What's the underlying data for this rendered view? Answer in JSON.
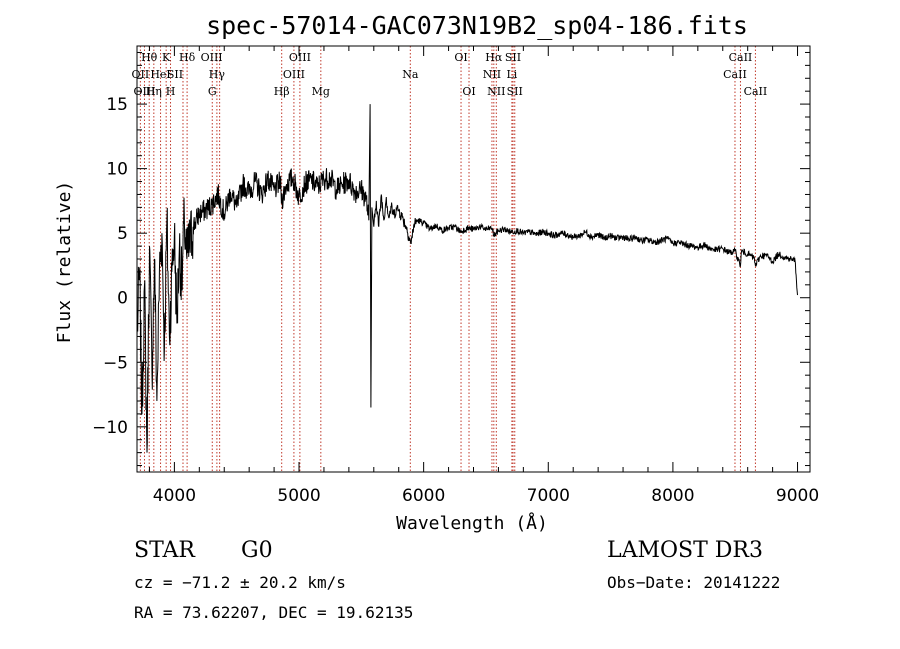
{
  "chart_data": {
    "type": "line",
    "title": "spec-57014-GAC073N19B2_sp04-186.fits",
    "xlabel": "Wavelength (Å)",
    "ylabel": "Flux (relative)",
    "xlim": [
      3700,
      9100
    ],
    "ylim": [
      -13.5,
      19.5
    ],
    "x_ticks": [
      4000,
      5000,
      6000,
      7000,
      8000,
      9000
    ],
    "x_tick_labels": [
      "4000",
      "5000",
      "6000",
      "7000",
      "8000",
      "9000"
    ],
    "y_ticks": [
      -10,
      -5,
      0,
      5,
      10,
      15
    ],
    "y_tick_labels": [
      "−10",
      "−5",
      "0",
      "5",
      "10",
      "15"
    ],
    "x_minor_step": 200,
    "y_minor_step": 1,
    "series": [
      {
        "name": "flux",
        "x": [
          3700,
          3720,
          3740,
          3760,
          3780,
          3800,
          3820,
          3840,
          3860,
          3880,
          3900,
          3920,
          3940,
          3960,
          3980,
          4000,
          4020,
          4040,
          4060,
          4080,
          4100,
          4150,
          4200,
          4250,
          4300,
          4350,
          4400,
          4450,
          4500,
          4550,
          4600,
          4650,
          4700,
          4750,
          4800,
          4850,
          4861,
          4900,
          4950,
          5000,
          5050,
          5100,
          5150,
          5200,
          5250,
          5300,
          5350,
          5400,
          5450,
          5500,
          5540,
          5560,
          5570,
          5577,
          5585,
          5600,
          5620,
          5640,
          5660,
          5680,
          5700,
          5720,
          5740,
          5760,
          5780,
          5800,
          5830,
          5860,
          5890,
          5900,
          5920,
          5950,
          6000,
          6050,
          6100,
          6150,
          6200,
          6250,
          6300,
          6350,
          6400,
          6450,
          6500,
          6550,
          6563,
          6600,
          6650,
          6700,
          6750,
          6800,
          6850,
          6900,
          6950,
          7000,
          7050,
          7100,
          7150,
          7200,
          7250,
          7300,
          7350,
          7400,
          7450,
          7500,
          7550,
          7600,
          7650,
          7700,
          7750,
          7800,
          7850,
          7900,
          7950,
          8000,
          8050,
          8100,
          8150,
          8200,
          8250,
          8300,
          8350,
          8400,
          8450,
          8500,
          8542,
          8550,
          8600,
          8650,
          8662,
          8700,
          8750,
          8800,
          8850,
          8900,
          8950,
          8980,
          9000
        ],
        "y": [
          -3,
          2,
          -9,
          1,
          -12,
          4,
          -6,
          3,
          -8,
          2,
          5,
          -4,
          6,
          -3,
          2,
          5,
          -2,
          4,
          1,
          6,
          3,
          5.5,
          6.5,
          6.8,
          7.2,
          8,
          6.5,
          8.2,
          7,
          8.8,
          8.2,
          9,
          8,
          9.2,
          8.3,
          9,
          7.5,
          8.8,
          9.3,
          7.8,
          8.9,
          9.1,
          8.6,
          9.2,
          9.3,
          8.4,
          8.8,
          9.1,
          8.2,
          8.4,
          7.6,
          6,
          15,
          -8.5,
          7,
          5.5,
          7.5,
          5.5,
          8,
          6,
          7.8,
          6.2,
          7,
          6.4,
          6.9,
          6.8,
          6.2,
          5.5,
          4.5,
          4.2,
          5.6,
          6,
          5.8,
          5.3,
          5.6,
          5.2,
          5.4,
          5.5,
          5.1,
          5.4,
          5.3,
          5.5,
          5.3,
          5.4,
          4.8,
          5.2,
          5.3,
          5.1,
          5.2,
          5,
          5.1,
          4.9,
          5.1,
          5,
          4.8,
          5,
          4.9,
          4.7,
          4.8,
          5.1,
          4.7,
          4.9,
          4.6,
          4.8,
          4.6,
          4.7,
          4.5,
          4.7,
          4.4,
          4.5,
          4.3,
          4.4,
          4.6,
          4.2,
          4.3,
          4.1,
          4,
          3.9,
          4.1,
          3.8,
          3.7,
          3.8,
          3.5,
          3.6,
          2.5,
          3.6,
          3.4,
          3.1,
          2.5,
          3.2,
          3.3,
          2.8,
          3.4,
          3.1,
          3,
          2.9,
          0.2
        ]
      }
    ],
    "lines": [
      {
        "name": "Hθ",
        "x": 3798,
        "row": 0,
        "dx": 0
      },
      {
        "name": "OII",
        "x": 3727,
        "row": 1,
        "dx": 0
      },
      {
        "name": "OIII",
        "x": 3760,
        "row": 2,
        "dx": 0
      },
      {
        "name": "Hη",
        "x": 3835,
        "row": 2,
        "dx": 0
      },
      {
        "name": "HeI",
        "x": 3889,
        "row": 1,
        "dx": 0
      },
      {
        "name": "K",
        "x": 3934,
        "row": 0,
        "dx": 0
      },
      {
        "name": "SII",
        "x": 4069,
        "row": 1,
        "dx": -8
      },
      {
        "name": "H",
        "x": 3969,
        "row": 2,
        "dx": 0
      },
      {
        "name": "Hδ",
        "x": 4102,
        "row": 0,
        "dx": 0
      },
      {
        "name": "OIII",
        "x": 4363,
        "row": 0,
        "dx": -8
      },
      {
        "name": "Hγ",
        "x": 4341,
        "row": 1,
        "dx": 0
      },
      {
        "name": "G",
        "x": 4304,
        "row": 2,
        "dx": 0
      },
      {
        "name": "Hβ",
        "x": 4861,
        "row": 2,
        "dx": 0
      },
      {
        "name": "OIII",
        "x": 5007,
        "row": 0,
        "dx": 0
      },
      {
        "name": "OIII",
        "x": 4959,
        "row": 1,
        "dx": 0
      },
      {
        "name": "Mg",
        "x": 5175,
        "row": 2,
        "dx": 0
      },
      {
        "name": "Na",
        "x": 5893,
        "row": 1,
        "dx": 0
      },
      {
        "name": "OI",
        "x": 6300,
        "row": 0,
        "dx": 0
      },
      {
        "name": "OI",
        "x": 6364,
        "row": 2,
        "dx": 0
      },
      {
        "name": "Hα",
        "x": 6563,
        "row": 0,
        "dx": 0
      },
      {
        "name": "NII",
        "x": 6548,
        "row": 1,
        "dx": 0
      },
      {
        "name": "NII",
        "x": 6583,
        "row": 2,
        "dx": 0
      },
      {
        "name": "SII",
        "x": 6717,
        "row": 0,
        "dx": 0
      },
      {
        "name": "Li",
        "x": 6708,
        "row": 1,
        "dx": 0
      },
      {
        "name": "SII",
        "x": 6731,
        "row": 2,
        "dx": 0
      },
      {
        "name": "CaII",
        "x": 8542,
        "row": 0,
        "dx": 0
      },
      {
        "name": "CaII",
        "x": 8498,
        "row": 1,
        "dx": 0
      },
      {
        "name": "CaII",
        "x": 8662,
        "row": 2,
        "dx": 0
      }
    ],
    "grid": false,
    "line_color": "#000000",
    "marker_color": "#c0392b"
  },
  "info": {
    "object_class": "STAR",
    "subclass": "G0",
    "survey": "LAMOST DR3",
    "redshift": "cz = −71.2 ± 20.2 km/s",
    "obs_date": "Obs−Date: 20141222",
    "coords": "RA =  73.62207, DEC =  19.62135"
  }
}
